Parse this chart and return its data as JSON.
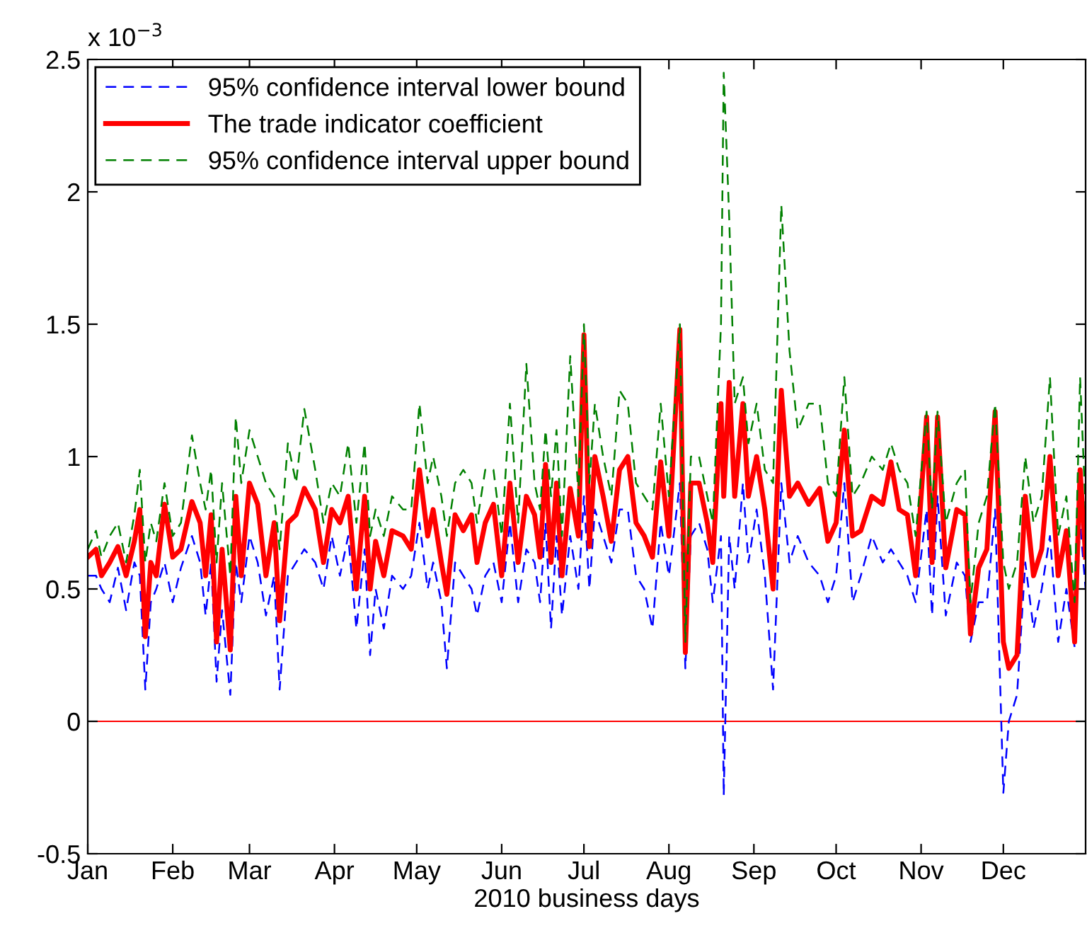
{
  "chart_data": {
    "type": "line",
    "xlabel": "2010 business days",
    "annotations": [
      "x 10$^{−3}$"
    ],
    "x": [
      "2010-01-01",
      "2010-01-04",
      "2010-01-06",
      "2010-01-09",
      "2010-01-12",
      "2010-01-15",
      "2010-01-18",
      "2010-01-20",
      "2010-01-22",
      "2010-01-24",
      "2010-01-26",
      "2010-01-29",
      "2010-02-01",
      "2010-02-04",
      "2010-02-08",
      "2010-02-11",
      "2010-02-13",
      "2010-02-15",
      "2010-02-17",
      "2010-02-19",
      "2010-02-22",
      "2010-02-24",
      "2010-02-26",
      "2010-03-01",
      "2010-03-04",
      "2010-03-07",
      "2010-03-10",
      "2010-03-12",
      "2010-03-15",
      "2010-03-18",
      "2010-03-21",
      "2010-03-25",
      "2010-03-28",
      "2010-03-31",
      "2010-04-03",
      "2010-04-06",
      "2010-04-09",
      "2010-04-12",
      "2010-04-14",
      "2010-04-16",
      "2010-04-19",
      "2010-04-22",
      "2010-04-26",
      "2010-04-29",
      "2010-05-02",
      "2010-05-05",
      "2010-05-07",
      "2010-05-10",
      "2010-05-12",
      "2010-05-15",
      "2010-05-18",
      "2010-05-21",
      "2010-05-23",
      "2010-05-26",
      "2010-05-29",
      "2010-06-01",
      "2010-06-04",
      "2010-06-07",
      "2010-06-10",
      "2010-06-13",
      "2010-06-15",
      "2010-06-17",
      "2010-06-19",
      "2010-06-21",
      "2010-06-23",
      "2010-06-26",
      "2010-06-29",
      "2010-07-01",
      "2010-07-03",
      "2010-07-05",
      "2010-07-08",
      "2010-07-11",
      "2010-07-14",
      "2010-07-17",
      "2010-07-20",
      "2010-07-23",
      "2010-07-26",
      "2010-07-29",
      "2010-08-01",
      "2010-08-05",
      "2010-08-07",
      "2010-08-09",
      "2010-08-12",
      "2010-08-15",
      "2010-08-17",
      "2010-08-20",
      "2010-08-21",
      "2010-08-23",
      "2010-08-25",
      "2010-08-28",
      "2010-08-30",
      "2010-09-02",
      "2010-09-05",
      "2010-09-08",
      "2010-09-11",
      "2010-09-14",
      "2010-09-17",
      "2010-09-21",
      "2010-09-25",
      "2010-09-28",
      "2010-10-01",
      "2010-10-04",
      "2010-10-07",
      "2010-10-10",
      "2010-10-14",
      "2010-10-18",
      "2010-10-21",
      "2010-10-24",
      "2010-10-27",
      "2010-10-30",
      "2010-11-03",
      "2010-11-05",
      "2010-11-07",
      "2010-11-10",
      "2010-11-14",
      "2010-11-17",
      "2010-11-19",
      "2010-11-22",
      "2010-11-25",
      "2010-11-28",
      "2010-12-01",
      "2010-12-03",
      "2010-12-06",
      "2010-12-09",
      "2010-12-12",
      "2010-12-15",
      "2010-12-18",
      "2010-12-21",
      "2010-12-24",
      "2010-12-27",
      "2010-12-29",
      "2010-12-31"
    ],
    "series": [
      {
        "name": "95% confidence interval lower bound",
        "color": "#0000ff",
        "line_style": "dashed",
        "values": [
          0.55,
          0.55,
          0.5,
          0.45,
          0.58,
          0.42,
          0.6,
          0.55,
          0.12,
          0.45,
          0.5,
          0.6,
          0.45,
          0.58,
          0.7,
          0.6,
          0.4,
          0.6,
          0.15,
          0.42,
          0.1,
          0.6,
          0.45,
          0.7,
          0.6,
          0.4,
          0.55,
          0.12,
          0.55,
          0.6,
          0.65,
          0.6,
          0.5,
          0.7,
          0.55,
          0.7,
          0.35,
          0.65,
          0.25,
          0.5,
          0.35,
          0.55,
          0.5,
          0.55,
          0.75,
          0.5,
          0.6,
          0.45,
          0.2,
          0.6,
          0.55,
          0.5,
          0.4,
          0.55,
          0.6,
          0.45,
          0.75,
          0.45,
          0.65,
          0.6,
          0.45,
          0.75,
          0.35,
          0.7,
          0.4,
          0.7,
          0.5,
          0.85,
          0.5,
          0.8,
          0.7,
          0.6,
          0.8,
          0.8,
          0.55,
          0.5,
          0.35,
          0.75,
          0.55,
          0.9,
          0.2,
          0.7,
          0.75,
          0.65,
          0.45,
          0.7,
          -0.28,
          0.7,
          0.5,
          0.9,
          0.6,
          0.8,
          0.55,
          0.12,
          0.9,
          0.6,
          0.7,
          0.6,
          0.55,
          0.45,
          0.55,
          0.9,
          0.45,
          0.55,
          0.7,
          0.6,
          0.65,
          0.6,
          0.55,
          0.45,
          0.8,
          0.4,
          0.85,
          0.4,
          0.6,
          0.55,
          0.3,
          0.45,
          0.45,
          0.8,
          -0.27,
          0.0,
          0.1,
          0.6,
          0.35,
          0.5,
          0.7,
          0.3,
          0.5,
          0.28,
          0.75,
          0.5
        ]
      },
      {
        "name": "The trade indicator coefficient",
        "color": "#ff0000",
        "line_style": "solid",
        "values": [
          0.62,
          0.65,
          0.55,
          0.6,
          0.66,
          0.55,
          0.68,
          0.8,
          0.32,
          0.6,
          0.55,
          0.82,
          0.62,
          0.65,
          0.83,
          0.75,
          0.55,
          0.78,
          0.3,
          0.65,
          0.27,
          0.85,
          0.55,
          0.9,
          0.82,
          0.55,
          0.75,
          0.38,
          0.75,
          0.78,
          0.88,
          0.8,
          0.6,
          0.8,
          0.75,
          0.85,
          0.5,
          0.85,
          0.5,
          0.68,
          0.55,
          0.72,
          0.7,
          0.65,
          0.95,
          0.7,
          0.8,
          0.6,
          0.48,
          0.78,
          0.72,
          0.78,
          0.6,
          0.75,
          0.82,
          0.55,
          0.9,
          0.6,
          0.85,
          0.78,
          0.62,
          0.97,
          0.6,
          0.9,
          0.55,
          0.88,
          0.7,
          1.46,
          0.66,
          1.0,
          0.85,
          0.68,
          0.95,
          1.0,
          0.75,
          0.7,
          0.62,
          0.98,
          0.7,
          1.48,
          0.26,
          0.9,
          0.9,
          0.75,
          0.6,
          1.2,
          0.85,
          1.28,
          0.85,
          1.2,
          0.85,
          1.0,
          0.8,
          0.5,
          1.25,
          0.85,
          0.9,
          0.82,
          0.88,
          0.68,
          0.75,
          1.1,
          0.7,
          0.72,
          0.85,
          0.82,
          0.98,
          0.8,
          0.78,
          0.55,
          1.15,
          0.6,
          1.15,
          0.58,
          0.8,
          0.78,
          0.33,
          0.58,
          0.65,
          1.17,
          0.3,
          0.2,
          0.25,
          0.85,
          0.55,
          0.65,
          1.0,
          0.55,
          0.72,
          0.3,
          0.95,
          0.62
        ]
      },
      {
        "name": "95% confidence interval upper bound",
        "color": "#008000",
        "line_style": "dashed",
        "values": [
          0.65,
          0.72,
          0.62,
          0.7,
          0.75,
          0.6,
          0.78,
          0.95,
          0.6,
          0.75,
          0.68,
          0.9,
          0.7,
          0.75,
          1.08,
          0.9,
          0.8,
          0.95,
          0.6,
          0.9,
          0.55,
          1.15,
          0.9,
          1.1,
          1.0,
          0.9,
          0.85,
          0.65,
          1.05,
          0.9,
          1.18,
          0.95,
          0.75,
          0.9,
          0.85,
          1.05,
          0.75,
          1.05,
          0.7,
          0.8,
          0.7,
          0.85,
          0.8,
          0.8,
          1.2,
          0.9,
          1.0,
          0.85,
          0.7,
          0.9,
          0.95,
          0.9,
          0.75,
          0.95,
          0.95,
          0.7,
          1.2,
          0.75,
          1.35,
          0.9,
          0.8,
          1.1,
          0.85,
          1.1,
          0.7,
          1.38,
          0.85,
          1.5,
          0.9,
          1.2,
          1.0,
          0.85,
          1.25,
          1.2,
          0.9,
          0.85,
          0.8,
          1.2,
          0.85,
          1.5,
          0.3,
          1.0,
          1.0,
          0.85,
          0.75,
          1.5,
          2.45,
          1.9,
          1.2,
          1.3,
          1.05,
          1.2,
          0.95,
          0.9,
          1.95,
          1.4,
          1.1,
          1.2,
          1.2,
          0.9,
          0.85,
          1.3,
          0.85,
          0.9,
          1.0,
          0.95,
          1.05,
          0.95,
          0.9,
          0.7,
          1.17,
          0.8,
          1.17,
          0.75,
          0.9,
          0.95,
          0.45,
          0.75,
          0.85,
          1.2,
          0.6,
          0.5,
          0.6,
          1.0,
          0.75,
          0.85,
          1.3,
          0.7,
          0.85,
          0.45,
          1.3,
          0.8
        ]
      }
    ],
    "ref_lines": [
      {
        "axis": "y",
        "value": 0,
        "color": "#ff0000",
        "line_style": "solid"
      }
    ],
    "xlim": [
      "2010-01-01",
      "2010-12-31"
    ],
    "xticks": [
      {
        "value": "2010-01-01",
        "label": "Jan"
      },
      {
        "value": "2010-02-01",
        "label": "Feb"
      },
      {
        "value": "2010-03-01",
        "label": "Mar"
      },
      {
        "value": "2010-04-01",
        "label": "Apr"
      },
      {
        "value": "2010-05-01",
        "label": "May"
      },
      {
        "value": "2010-06-01",
        "label": "Jun"
      },
      {
        "value": "2010-07-01",
        "label": "Jul"
      },
      {
        "value": "2010-08-01",
        "label": "Aug"
      },
      {
        "value": "2010-09-01",
        "label": "Sep"
      },
      {
        "value": "2010-10-01",
        "label": "Oct"
      },
      {
        "value": "2010-11-01",
        "label": "Nov"
      },
      {
        "value": "2010-12-01",
        "label": "Dec"
      }
    ],
    "ylim": [
      -0.5,
      2.5
    ],
    "yticks": [
      -0.5,
      0,
      0.5,
      1,
      1.5,
      2,
      2.5
    ],
    "legend": "top left"
  }
}
